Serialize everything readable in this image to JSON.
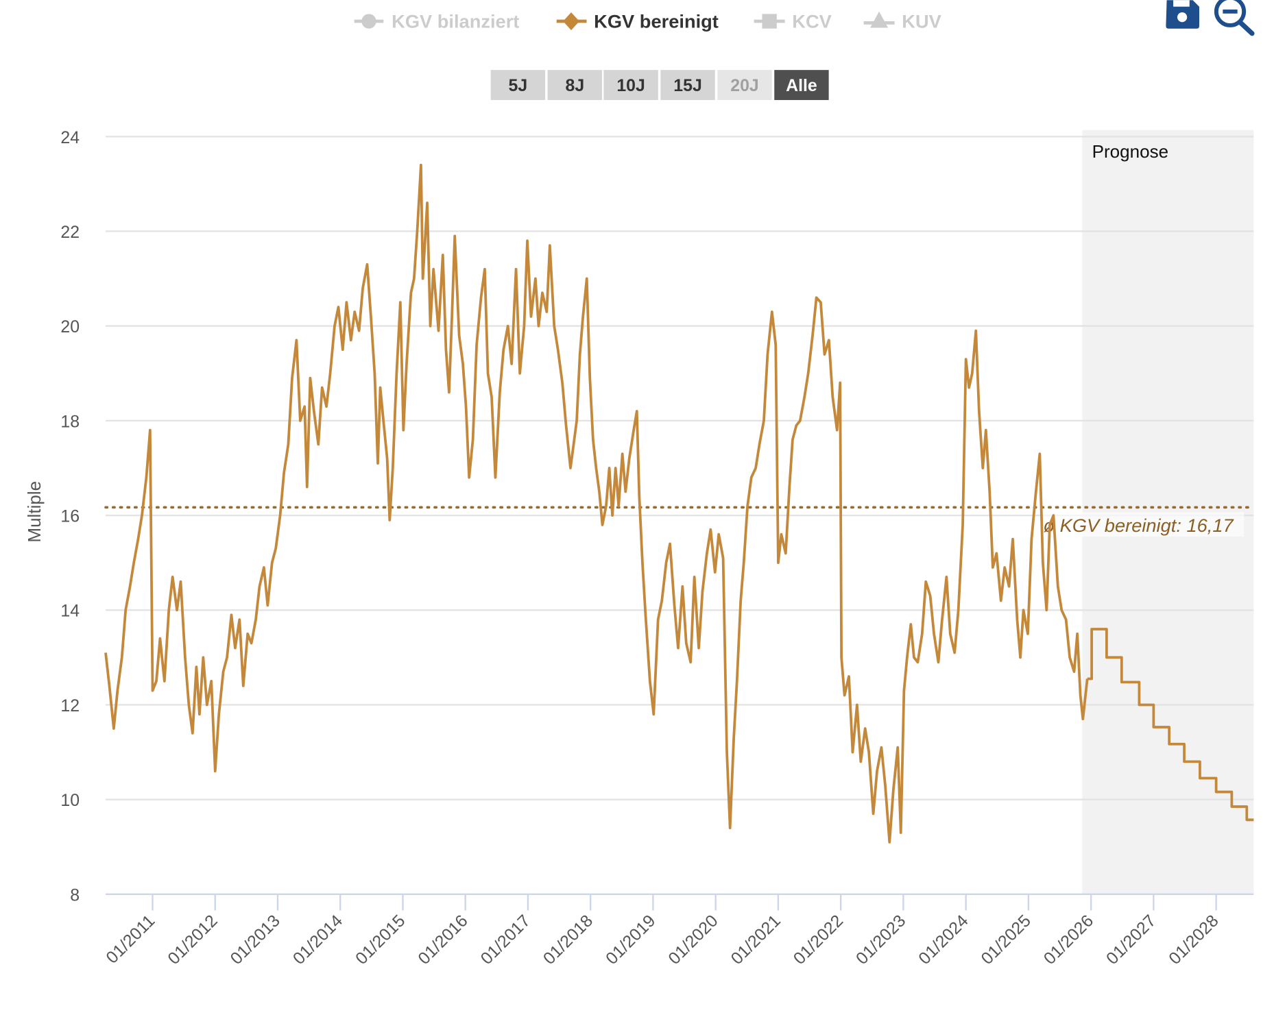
{
  "toolbar": {
    "legend": [
      {
        "label": "KGV bilanziert",
        "icon": "circle-icon",
        "active": false
      },
      {
        "label": "KGV bereinigt",
        "icon": "diamond-icon",
        "active": true
      },
      {
        "label": "KCV",
        "icon": "square-icon",
        "active": false
      },
      {
        "label": "KUV",
        "icon": "triangle-icon",
        "active": false
      }
    ],
    "ranges": [
      {
        "label": "5J",
        "state": "normal"
      },
      {
        "label": "8J",
        "state": "normal"
      },
      {
        "label": "10J",
        "state": "normal"
      },
      {
        "label": "15J",
        "state": "normal"
      },
      {
        "label": "20J",
        "state": "disabled"
      },
      {
        "label": "Alle",
        "state": "selected"
      }
    ],
    "icons": [
      "save-icon",
      "zoom-out-icon"
    ]
  },
  "colors": {
    "line": "#c4883b",
    "average": "#9a6a2a",
    "icon": "#1f4e8c",
    "prognosis_band": "#f2f2f2"
  },
  "chart_data": {
    "type": "line",
    "title": "",
    "xlabel": "",
    "ylabel": "Multiple",
    "ylim": [
      8,
      24
    ],
    "xlim": [
      2010.25,
      2028.6
    ],
    "y_ticks": [
      "8",
      "10",
      "12",
      "14",
      "16",
      "18",
      "20",
      "22",
      "24"
    ],
    "x_ticks": [
      "01/2011",
      "01/2012",
      "01/2013",
      "01/2014",
      "01/2015",
      "01/2016",
      "01/2017",
      "01/2018",
      "01/2019",
      "01/2020",
      "01/2021",
      "01/2022",
      "01/2023",
      "01/2024",
      "01/2025",
      "01/2026",
      "01/2027",
      "01/2028"
    ],
    "grid": true,
    "legend_position": "top",
    "prognosis": {
      "label": "Prognose",
      "start": 2025.86
    },
    "average": {
      "value": 16.17,
      "label": "ø KGV bereinigt: 16,17"
    },
    "series": [
      {
        "name": "KGV bereinigt",
        "points": [
          [
            2010.25,
            13.1
          ],
          [
            2010.31,
            12.4
          ],
          [
            2010.38,
            11.5
          ],
          [
            2010.44,
            12.3
          ],
          [
            2010.51,
            13.0
          ],
          [
            2010.57,
            14.0
          ],
          [
            2010.64,
            14.5
          ],
          [
            2010.7,
            15.0
          ],
          [
            2010.77,
            15.5
          ],
          [
            2010.83,
            16.0
          ],
          [
            2010.9,
            16.8
          ],
          [
            2010.96,
            17.8
          ],
          [
            2011.0,
            12.3
          ],
          [
            2011.06,
            12.5
          ],
          [
            2011.12,
            13.4
          ],
          [
            2011.19,
            12.5
          ],
          [
            2011.26,
            14.0
          ],
          [
            2011.32,
            14.7
          ],
          [
            2011.39,
            14.0
          ],
          [
            2011.45,
            14.6
          ],
          [
            2011.52,
            13.0
          ],
          [
            2011.58,
            12.0
          ],
          [
            2011.64,
            11.4
          ],
          [
            2011.7,
            12.8
          ],
          [
            2011.75,
            11.8
          ],
          [
            2011.81,
            13.0
          ],
          [
            2011.87,
            12.0
          ],
          [
            2011.94,
            12.5
          ],
          [
            2012.0,
            10.6
          ],
          [
            2012.06,
            11.8
          ],
          [
            2012.13,
            12.7
          ],
          [
            2012.19,
            13.0
          ],
          [
            2012.26,
            13.9
          ],
          [
            2012.32,
            13.2
          ],
          [
            2012.39,
            13.8
          ],
          [
            2012.45,
            12.4
          ],
          [
            2012.52,
            13.5
          ],
          [
            2012.58,
            13.3
          ],
          [
            2012.65,
            13.8
          ],
          [
            2012.71,
            14.5
          ],
          [
            2012.78,
            14.9
          ],
          [
            2012.84,
            14.1
          ],
          [
            2012.91,
            15.0
          ],
          [
            2012.97,
            15.3
          ],
          [
            2013.04,
            16.0
          ],
          [
            2013.1,
            16.9
          ],
          [
            2013.17,
            17.5
          ],
          [
            2013.23,
            18.9
          ],
          [
            2013.3,
            19.7
          ],
          [
            2013.36,
            18.0
          ],
          [
            2013.43,
            18.3
          ],
          [
            2013.47,
            16.6
          ],
          [
            2013.52,
            18.9
          ],
          [
            2013.58,
            18.2
          ],
          [
            2013.65,
            17.5
          ],
          [
            2013.71,
            18.7
          ],
          [
            2013.78,
            18.3
          ],
          [
            2013.84,
            19.0
          ],
          [
            2013.91,
            20.0
          ],
          [
            2013.97,
            20.4
          ],
          [
            2014.04,
            19.5
          ],
          [
            2014.1,
            20.5
          ],
          [
            2014.17,
            19.7
          ],
          [
            2014.23,
            20.3
          ],
          [
            2014.3,
            19.9
          ],
          [
            2014.36,
            20.8
          ],
          [
            2014.43,
            21.3
          ],
          [
            2014.49,
            20.2
          ],
          [
            2014.55,
            19.0
          ],
          [
            2014.6,
            17.1
          ],
          [
            2014.64,
            18.7
          ],
          [
            2014.69,
            18.0
          ],
          [
            2014.75,
            17.2
          ],
          [
            2014.79,
            15.9
          ],
          [
            2014.84,
            17.0
          ],
          [
            2014.9,
            19.0
          ],
          [
            2014.96,
            20.5
          ],
          [
            2015.01,
            17.8
          ],
          [
            2015.06,
            19.2
          ],
          [
            2015.13,
            20.7
          ],
          [
            2015.18,
            21.0
          ],
          [
            2015.23,
            22.0
          ],
          [
            2015.29,
            23.4
          ],
          [
            2015.32,
            21.0
          ],
          [
            2015.39,
            22.6
          ],
          [
            2015.44,
            20.0
          ],
          [
            2015.49,
            21.2
          ],
          [
            2015.57,
            19.9
          ],
          [
            2015.64,
            21.5
          ],
          [
            2015.69,
            19.5
          ],
          [
            2015.74,
            18.6
          ],
          [
            2015.78,
            20.0
          ],
          [
            2015.83,
            21.9
          ],
          [
            2015.9,
            19.8
          ],
          [
            2015.96,
            19.2
          ],
          [
            2016.01,
            18.3
          ],
          [
            2016.06,
            16.8
          ],
          [
            2016.12,
            17.6
          ],
          [
            2016.18,
            19.6
          ],
          [
            2016.25,
            20.6
          ],
          [
            2016.31,
            21.2
          ],
          [
            2016.36,
            19.0
          ],
          [
            2016.42,
            18.5
          ],
          [
            2016.48,
            16.8
          ],
          [
            2016.55,
            18.6
          ],
          [
            2016.61,
            19.5
          ],
          [
            2016.68,
            20.0
          ],
          [
            2016.74,
            19.2
          ],
          [
            2016.81,
            21.2
          ],
          [
            2016.87,
            19.0
          ],
          [
            2016.94,
            20.0
          ],
          [
            2016.99,
            21.8
          ],
          [
            2017.05,
            20.2
          ],
          [
            2017.12,
            21.0
          ],
          [
            2017.17,
            20.0
          ],
          [
            2017.23,
            20.7
          ],
          [
            2017.3,
            20.3
          ],
          [
            2017.35,
            21.7
          ],
          [
            2017.42,
            20.0
          ],
          [
            2017.48,
            19.5
          ],
          [
            2017.55,
            18.8
          ],
          [
            2017.61,
            17.9
          ],
          [
            2017.68,
            17.0
          ],
          [
            2017.73,
            17.5
          ],
          [
            2017.78,
            18.0
          ],
          [
            2017.83,
            19.4
          ],
          [
            2017.88,
            20.2
          ],
          [
            2017.94,
            21.0
          ],
          [
            2017.99,
            18.9
          ],
          [
            2018.04,
            17.6
          ],
          [
            2018.09,
            17.0
          ],
          [
            2018.14,
            16.5
          ],
          [
            2018.19,
            15.8
          ],
          [
            2018.25,
            16.2
          ],
          [
            2018.3,
            17.0
          ],
          [
            2018.35,
            16.0
          ],
          [
            2018.4,
            17.0
          ],
          [
            2018.45,
            16.2
          ],
          [
            2018.51,
            17.3
          ],
          [
            2018.56,
            16.5
          ],
          [
            2018.62,
            17.2
          ],
          [
            2018.69,
            17.8
          ],
          [
            2018.74,
            18.2
          ],
          [
            2018.78,
            16.4
          ],
          [
            2018.83,
            15.0
          ],
          [
            2018.88,
            13.9
          ],
          [
            2018.95,
            12.5
          ],
          [
            2019.01,
            11.8
          ],
          [
            2019.08,
            13.8
          ],
          [
            2019.14,
            14.2
          ],
          [
            2019.21,
            15.0
          ],
          [
            2019.27,
            15.4
          ],
          [
            2019.34,
            14.1
          ],
          [
            2019.4,
            13.2
          ],
          [
            2019.47,
            14.5
          ],
          [
            2019.53,
            13.3
          ],
          [
            2019.6,
            12.9
          ],
          [
            2019.66,
            14.7
          ],
          [
            2019.73,
            13.2
          ],
          [
            2019.79,
            14.4
          ],
          [
            2019.86,
            15.2
          ],
          [
            2019.92,
            15.7
          ],
          [
            2019.99,
            14.8
          ],
          [
            2020.05,
            15.6
          ],
          [
            2020.12,
            15.1
          ],
          [
            2020.18,
            11.0
          ],
          [
            2020.23,
            9.4
          ],
          [
            2020.29,
            11.3
          ],
          [
            2020.34,
            12.5
          ],
          [
            2020.4,
            14.2
          ],
          [
            2020.45,
            15.0
          ],
          [
            2020.51,
            16.2
          ],
          [
            2020.57,
            16.8
          ],
          [
            2020.64,
            17.0
          ],
          [
            2020.7,
            17.5
          ],
          [
            2020.77,
            18.0
          ],
          [
            2020.83,
            19.4
          ],
          [
            2020.9,
            20.3
          ],
          [
            2020.96,
            19.6
          ],
          [
            2021.0,
            15.0
          ],
          [
            2021.05,
            15.6
          ],
          [
            2021.12,
            15.2
          ],
          [
            2021.18,
            16.6
          ],
          [
            2021.23,
            17.6
          ],
          [
            2021.29,
            17.9
          ],
          [
            2021.35,
            18.0
          ],
          [
            2021.42,
            18.5
          ],
          [
            2021.48,
            19.0
          ],
          [
            2021.55,
            19.8
          ],
          [
            2021.61,
            20.6
          ],
          [
            2021.68,
            20.5
          ],
          [
            2021.74,
            19.4
          ],
          [
            2021.81,
            19.7
          ],
          [
            2021.87,
            18.5
          ],
          [
            2021.94,
            17.8
          ],
          [
            2021.99,
            18.8
          ],
          [
            2022.01,
            13.0
          ],
          [
            2022.06,
            12.2
          ],
          [
            2022.13,
            12.6
          ],
          [
            2022.19,
            11.0
          ],
          [
            2022.26,
            12.0
          ],
          [
            2022.32,
            10.8
          ],
          [
            2022.39,
            11.5
          ],
          [
            2022.45,
            11.0
          ],
          [
            2022.52,
            9.7
          ],
          [
            2022.58,
            10.6
          ],
          [
            2022.65,
            11.1
          ],
          [
            2022.71,
            10.3
          ],
          [
            2022.78,
            9.1
          ],
          [
            2022.84,
            10.2
          ],
          [
            2022.91,
            11.1
          ],
          [
            2022.96,
            9.3
          ],
          [
            2023.01,
            12.3
          ],
          [
            2023.06,
            13.0
          ],
          [
            2023.12,
            13.7
          ],
          [
            2023.17,
            13.0
          ],
          [
            2023.23,
            12.9
          ],
          [
            2023.3,
            13.5
          ],
          [
            2023.36,
            14.6
          ],
          [
            2023.43,
            14.3
          ],
          [
            2023.49,
            13.5
          ],
          [
            2023.56,
            12.9
          ],
          [
            2023.62,
            13.8
          ],
          [
            2023.69,
            14.7
          ],
          [
            2023.75,
            13.5
          ],
          [
            2023.82,
            13.1
          ],
          [
            2023.88,
            14.0
          ],
          [
            2023.95,
            15.8
          ],
          [
            2024.0,
            19.3
          ],
          [
            2024.05,
            18.7
          ],
          [
            2024.1,
            19.0
          ],
          [
            2024.16,
            19.9
          ],
          [
            2024.21,
            18.2
          ],
          [
            2024.27,
            17.0
          ],
          [
            2024.32,
            17.8
          ],
          [
            2024.38,
            16.5
          ],
          [
            2024.43,
            14.9
          ],
          [
            2024.49,
            15.2
          ],
          [
            2024.56,
            14.2
          ],
          [
            2024.62,
            14.9
          ],
          [
            2024.69,
            14.5
          ],
          [
            2024.75,
            15.5
          ],
          [
            2024.82,
            13.8
          ],
          [
            2024.87,
            13.0
          ],
          [
            2024.92,
            14.0
          ],
          [
            2024.99,
            13.5
          ],
          [
            2025.05,
            15.5
          ],
          [
            2025.12,
            16.5
          ],
          [
            2025.18,
            17.3
          ],
          [
            2025.23,
            15.0
          ],
          [
            2025.29,
            14.0
          ],
          [
            2025.34,
            15.8
          ],
          [
            2025.4,
            16.0
          ],
          [
            2025.47,
            14.5
          ],
          [
            2025.53,
            14.0
          ],
          [
            2025.6,
            13.8
          ],
          [
            2025.66,
            13.0
          ],
          [
            2025.73,
            12.7
          ],
          [
            2025.78,
            13.5
          ],
          [
            2025.83,
            12.2
          ],
          [
            2025.87,
            11.7
          ],
          [
            2025.94,
            12.55
          ]
        ]
      },
      {
        "name": "KGV bereinigt (Prognose)",
        "step": true,
        "points": [
          [
            2025.94,
            12.55
          ],
          [
            2026.01,
            13.6
          ],
          [
            2026.25,
            13.0
          ],
          [
            2026.49,
            12.48
          ],
          [
            2026.77,
            12.0
          ],
          [
            2027.0,
            11.53
          ],
          [
            2027.25,
            11.17
          ],
          [
            2027.49,
            10.8
          ],
          [
            2027.74,
            10.45
          ],
          [
            2028.0,
            10.16
          ],
          [
            2028.25,
            9.85
          ],
          [
            2028.49,
            9.57
          ],
          [
            2028.6,
            9.57
          ]
        ]
      }
    ]
  }
}
